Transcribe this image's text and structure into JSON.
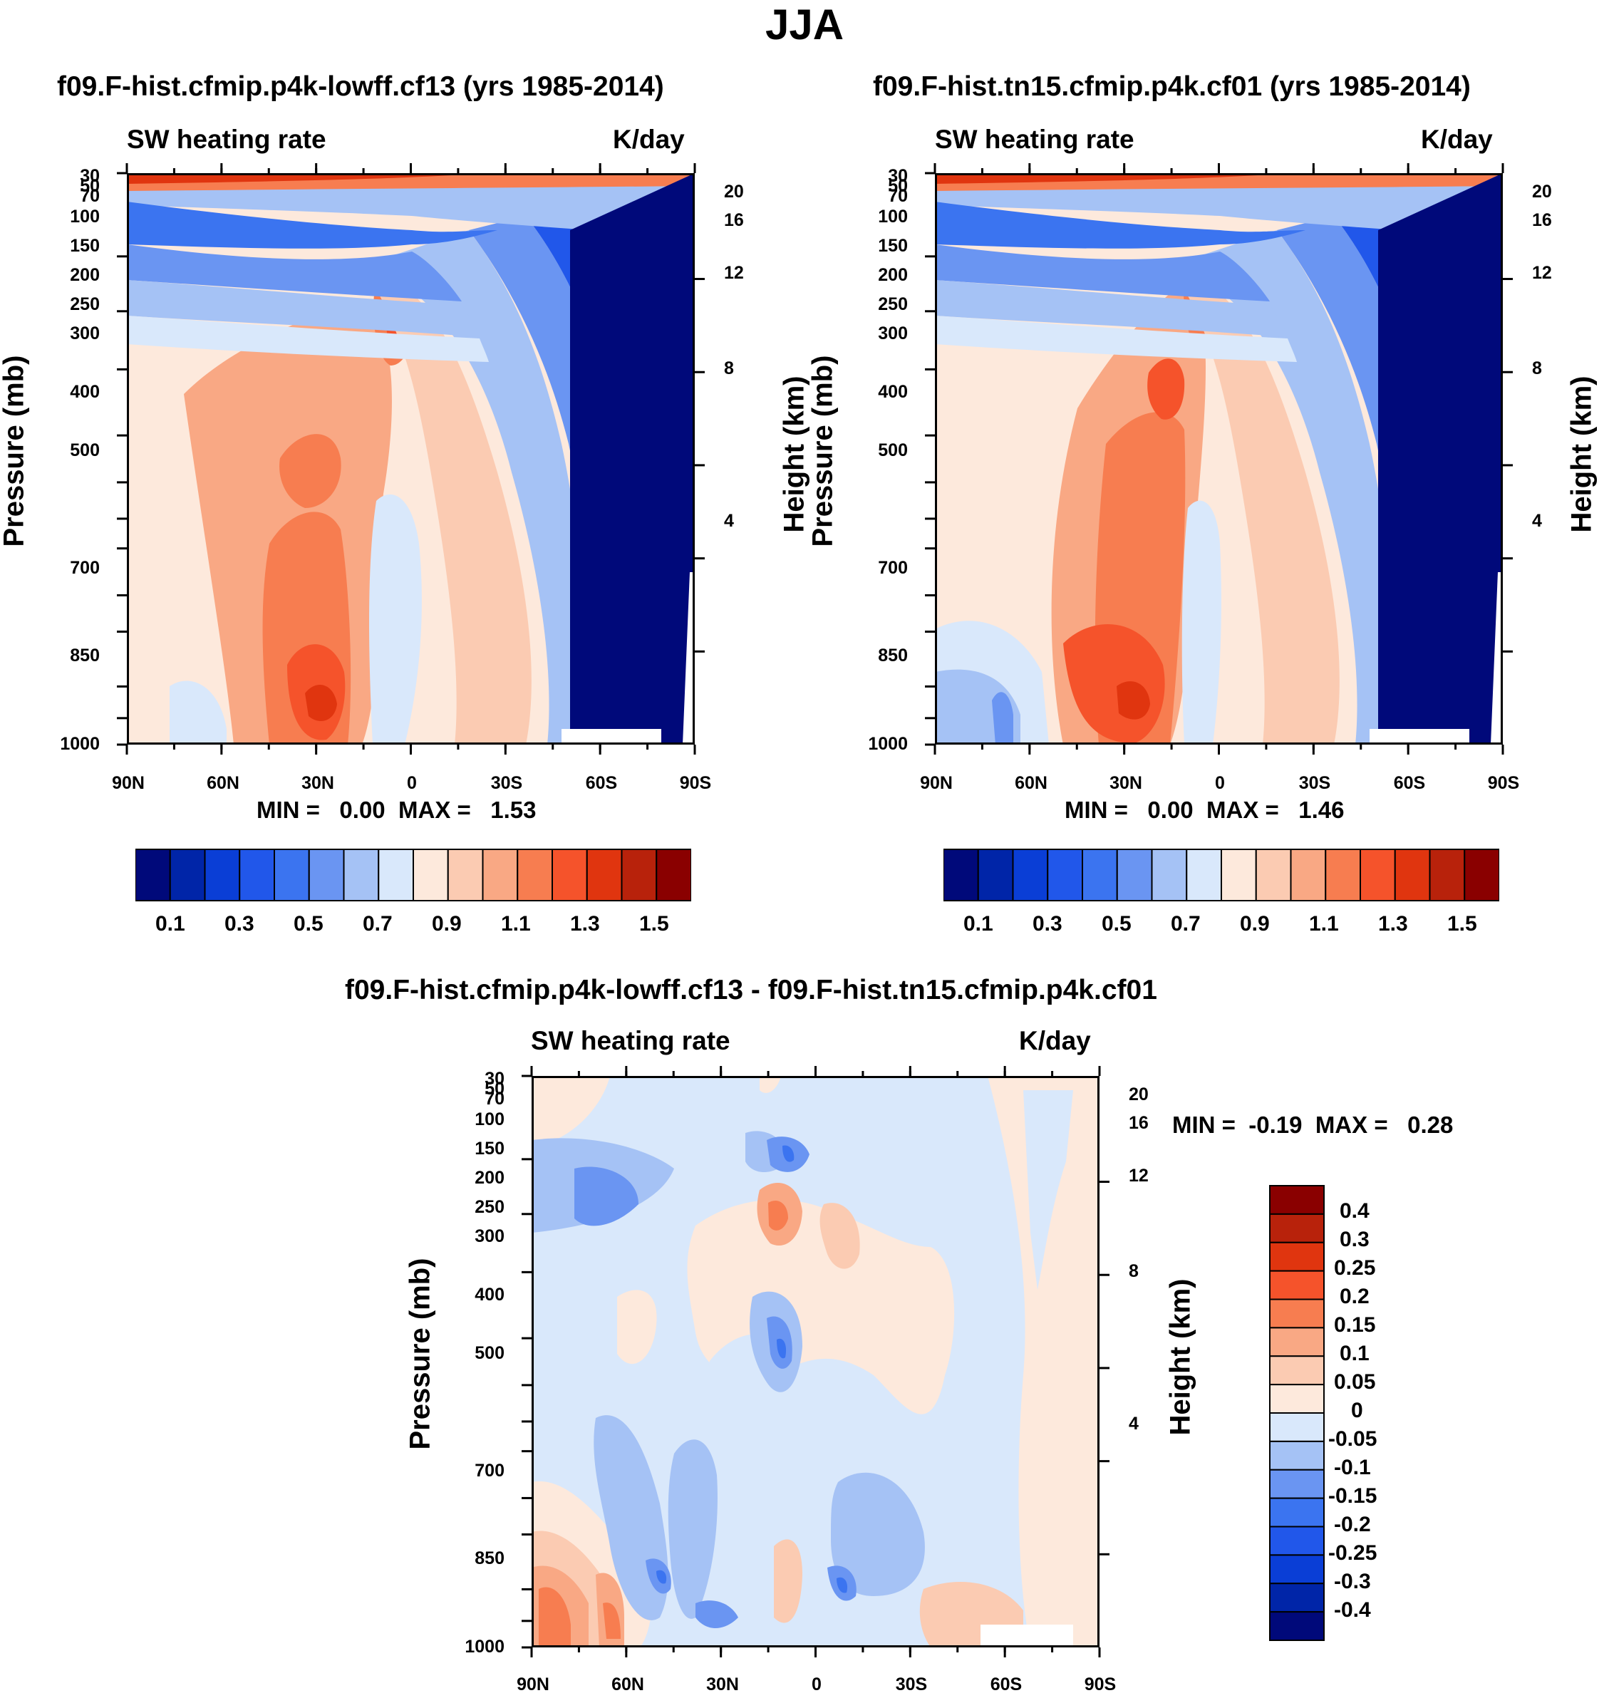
{
  "figure": {
    "title": "JJA"
  },
  "chart_data": [
    {
      "type": "heatmap",
      "title": "f09.F-hist.cfmip.p4k-lowff.cf13 (yrs 1985-2014)",
      "left_label": "SW heating rate",
      "right_label": "K/day",
      "xlabel": "",
      "ylabel": "Pressure (mb)",
      "y2label": "Height (km)",
      "x_ticks": [
        "90N",
        "60N",
        "30N",
        "0",
        "30S",
        "60S",
        "90S"
      ],
      "y_ticks": [
        "30",
        "50",
        "70",
        "100",
        "150",
        "200",
        "250",
        "300",
        "400",
        "500",
        "700",
        "850",
        "1000"
      ],
      "y2_ticks": [
        "20",
        "16",
        "12",
        "8",
        "4"
      ],
      "stats": "MIN =   0.00  MAX =   1.53",
      "min": 0.0,
      "max": 1.53,
      "colorbar_labels": [
        "0.1",
        "0.3",
        "0.5",
        "0.7",
        "0.9",
        "1.1",
        "1.3",
        "1.5"
      ],
      "colorbar_orientation": "horizontal"
    },
    {
      "type": "heatmap",
      "title": "f09.F-hist.tn15.cfmip.p4k.cf01 (yrs 1985-2014)",
      "left_label": "SW heating rate",
      "right_label": "K/day",
      "xlabel": "",
      "ylabel": "Pressure (mb)",
      "y2label": "Height (km)",
      "x_ticks": [
        "90N",
        "60N",
        "30N",
        "0",
        "30S",
        "60S",
        "90S"
      ],
      "y_ticks": [
        "30",
        "50",
        "70",
        "100",
        "150",
        "200",
        "250",
        "300",
        "400",
        "500",
        "700",
        "850",
        "1000"
      ],
      "y2_ticks": [
        "20",
        "16",
        "12",
        "8",
        "4"
      ],
      "stats": "MIN =   0.00  MAX =   1.46",
      "min": 0.0,
      "max": 1.46,
      "colorbar_labels": [
        "0.1",
        "0.3",
        "0.5",
        "0.7",
        "0.9",
        "1.1",
        "1.3",
        "1.5"
      ],
      "colorbar_orientation": "horizontal"
    },
    {
      "type": "heatmap",
      "title": "f09.F-hist.cfmip.p4k-lowff.cf13 - f09.F-hist.tn15.cfmip.p4k.cf01",
      "left_label": "SW heating rate",
      "right_label": "K/day",
      "xlabel": "",
      "ylabel": "Pressure (mb)",
      "y2label": "Height (km)",
      "x_ticks": [
        "90N",
        "60N",
        "30N",
        "0",
        "30S",
        "60S",
        "90S"
      ],
      "y_ticks": [
        "30",
        "50",
        "70",
        "100",
        "150",
        "200",
        "250",
        "300",
        "400",
        "500",
        "700",
        "850",
        "1000"
      ],
      "y2_ticks": [
        "20",
        "16",
        "12",
        "8",
        "4"
      ],
      "stats": "MIN =  -0.19  MAX =   0.28",
      "min": -0.19,
      "max": 0.28,
      "colorbar_labels": [
        "0.4",
        "0.3",
        "0.25",
        "0.2",
        "0.15",
        "0.1",
        "0.05",
        "0",
        "-0.05",
        "-0.1",
        "-0.15",
        "-0.2",
        "-0.25",
        "-0.3",
        "-0.4"
      ],
      "colorbar_orientation": "vertical"
    }
  ],
  "colors": {
    "palette": [
      "#00097a",
      "#0025a8",
      "#0a3ed6",
      "#2157ea",
      "#3b74f0",
      "#6a95f2",
      "#a5c2f5",
      "#d9e8fb",
      "#fde9dc",
      "#fbcbb2",
      "#f9a884",
      "#f77d50",
      "#f5532b",
      "#e0350f",
      "#b8220b",
      "#8a0000"
    ]
  }
}
